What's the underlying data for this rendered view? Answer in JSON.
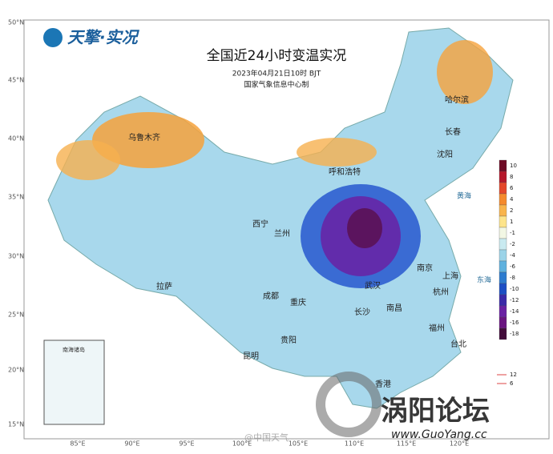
{
  "logo": "天擎·实况",
  "title": "全国近24小时变温实况",
  "datetime": "2023年04月21日10时 BJT",
  "issuer": "国家气象信息中心制",
  "latitude_labels": [
    "50°N",
    "45°N",
    "40°N",
    "35°N",
    "30°N",
    "25°N",
    "20°N",
    "15°N"
  ],
  "longitude_labels": [
    "85°E",
    "90°E",
    "95°E",
    "100°E",
    "105°E",
    "110°E",
    "115°E",
    "120°E"
  ],
  "legend": {
    "items": [
      {
        "label": 10,
        "color": "#6e0b25"
      },
      {
        "label": 8,
        "color": "#b5172b"
      },
      {
        "label": 6,
        "color": "#e4472a"
      },
      {
        "label": 4,
        "color": "#f58a2c"
      },
      {
        "label": 2,
        "color": "#f9b44b"
      },
      {
        "label": 1,
        "color": "#fde48b"
      },
      {
        "label": -1,
        "color": "#f2f7e4"
      },
      {
        "label": -2,
        "color": "#c9eaf0"
      },
      {
        "label": -4,
        "color": "#9bd3e8"
      },
      {
        "label": -6,
        "color": "#5fb1de"
      },
      {
        "label": -8,
        "color": "#2d7ccf"
      },
      {
        "label": -10,
        "color": "#1d4fc4"
      },
      {
        "label": -12,
        "color": "#3b2aa8"
      },
      {
        "label": -14,
        "color": "#6a21a3"
      },
      {
        "label": -16,
        "color": "#6a1480"
      },
      {
        "label": -18,
        "color": "#420c3a"
      }
    ]
  },
  "scale": {
    "labels": [
      "12",
      "6"
    ]
  },
  "cities": [
    "乌鲁木齐",
    "哈尔滨",
    "长春",
    "沈阳",
    "呼和浩特",
    "西宁",
    "兰州",
    "拉萨",
    "成都",
    "重庆",
    "贵阳",
    "昆明",
    "武汉",
    "南京",
    "上海",
    "杭州",
    "长沙",
    "南昌",
    "福州",
    "台北",
    "香港"
  ],
  "seas": [
    "黄海",
    "东海"
  ],
  "inset": {
    "title": "南海诸岛"
  },
  "watermarks": {
    "weibo": "@中国天气",
    "forum": "涡阳论坛",
    "url": "www.GuoYang.cc"
  }
}
